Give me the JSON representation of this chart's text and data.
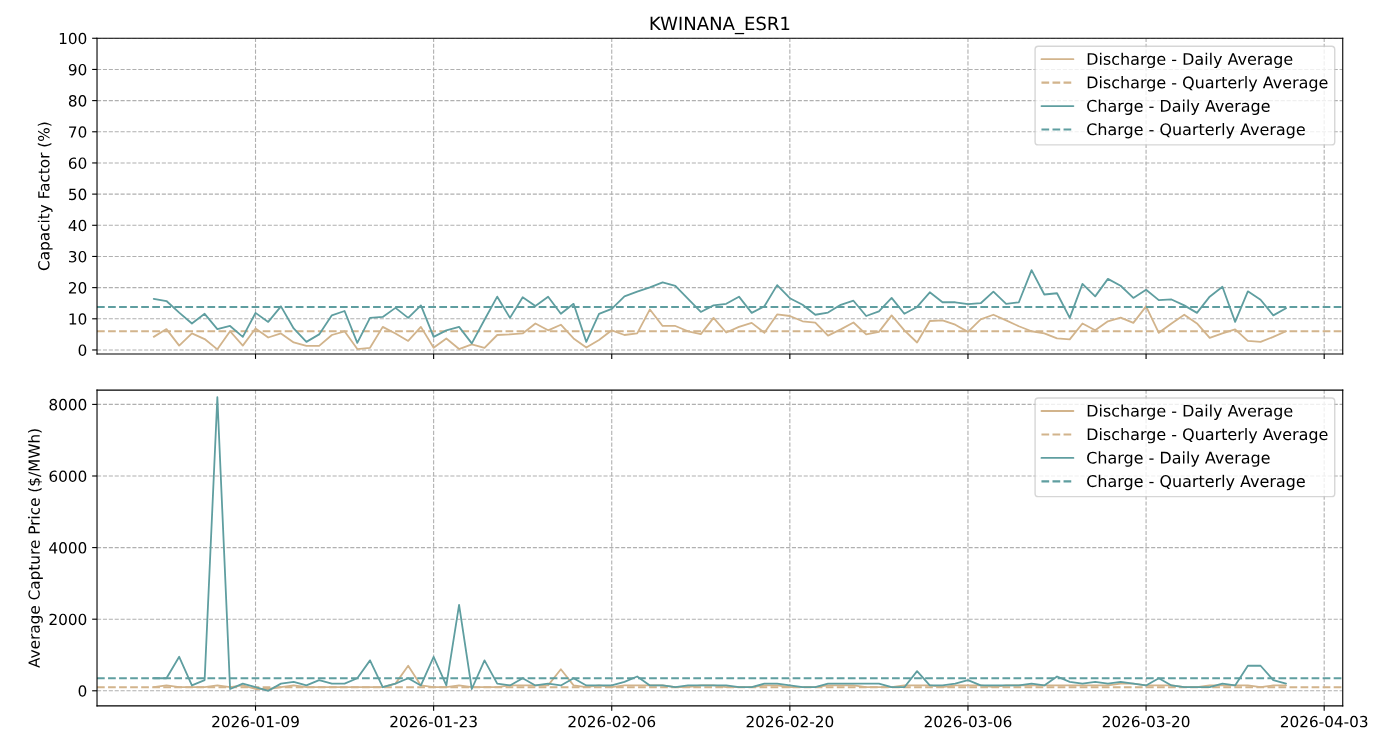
{
  "chart_data": [
    {
      "type": "line",
      "title": "KWINANA_ESR1",
      "ylabel": "Capacity Factor (%)",
      "x": [
        "2026-01-01",
        "2026-01-02",
        "2026-01-03",
        "2026-01-04",
        "2026-01-05",
        "2026-01-06",
        "2026-01-07",
        "2026-01-08",
        "2026-01-09",
        "2026-01-10",
        "2026-01-11",
        "2026-01-12",
        "2026-01-13",
        "2026-01-14",
        "2026-01-15",
        "2026-01-16",
        "2026-01-17",
        "2026-01-18",
        "2026-01-19",
        "2026-01-20",
        "2026-01-21",
        "2026-01-22",
        "2026-01-23",
        "2026-01-24",
        "2026-01-25",
        "2026-01-26",
        "2026-01-27",
        "2026-01-28",
        "2026-01-29",
        "2026-01-30",
        "2026-01-31",
        "2026-02-01",
        "2026-02-02",
        "2026-02-03",
        "2026-02-04",
        "2026-02-05",
        "2026-02-06",
        "2026-02-07",
        "2026-02-08",
        "2026-02-09",
        "2026-02-10",
        "2026-02-11",
        "2026-02-12",
        "2026-02-13",
        "2026-02-14",
        "2026-02-15",
        "2026-02-16",
        "2026-02-17",
        "2026-02-18",
        "2026-02-19",
        "2026-02-20",
        "2026-02-21",
        "2026-02-22",
        "2026-02-23",
        "2026-02-24",
        "2026-02-25",
        "2026-02-26",
        "2026-02-27",
        "2026-02-28",
        "2026-03-01",
        "2026-03-02",
        "2026-03-03",
        "2026-03-04",
        "2026-03-05",
        "2026-03-06",
        "2026-03-07",
        "2026-03-08",
        "2026-03-09",
        "2026-03-10",
        "2026-03-11",
        "2026-03-12",
        "2026-03-13",
        "2026-03-14",
        "2026-03-15",
        "2026-03-16",
        "2026-03-17",
        "2026-03-18",
        "2026-03-19",
        "2026-03-20",
        "2026-03-21",
        "2026-03-22",
        "2026-03-23",
        "2026-03-24",
        "2026-03-25",
        "2026-03-26",
        "2026-03-27",
        "2026-03-28",
        "2026-03-29",
        "2026-03-30",
        "2026-03-31"
      ],
      "xlim": [
        "2025-12-27T13:00",
        "2026-04-04T11:00"
      ],
      "xticks": [
        "2026-01-09",
        "2026-01-23",
        "2026-02-06",
        "2026-02-20",
        "2026-03-06",
        "2026-03-20",
        "2026-04-03"
      ],
      "ylim": [
        -1.3,
        100
      ],
      "yticks": [
        0,
        10,
        20,
        30,
        40,
        50,
        60,
        70,
        80,
        90,
        100
      ],
      "tick_labels": "y",
      "grid": true,
      "legend": "top right",
      "line_style": "solid",
      "series": [
        {
          "name": "Discharge - Daily Average",
          "color": "#d2b48c",
          "values": [
            4.2,
            6.7,
            1.4,
            5.3,
            3.5,
            0.2,
            6,
            1.4,
            6.9,
            4,
            5.3,
            2.4,
            1.3,
            1.3,
            4.8,
            6,
            0.3,
            0.7,
            7.4,
            5.3,
            2.9,
            7.4,
            0.7,
            3.7,
            0.3,
            1.8,
            0.7,
            4.8,
            5,
            5.3,
            8.5,
            6.3,
            8.1,
            3.7,
            0.8,
            3.2,
            6.3,
            4.8,
            5.3,
            13,
            7.7,
            7.7,
            6,
            5.1,
            10.3,
            5.6,
            7.4,
            8.7,
            5.5,
            11.4,
            10.9,
            9.2,
            8.8,
            4.6,
            6.6,
            8.8,
            5,
            5.8,
            11.1,
            6.3,
            2.4,
            9.3,
            9.5,
            8.1,
            5.8,
            9.8,
            11.3,
            9.5,
            7.6,
            6,
            5.3,
            3.7,
            3.4,
            8.5,
            6.3,
            9.2,
            10.4,
            8.7,
            14,
            5.5,
            8.5,
            11.3,
            8.5,
            3.9,
            5.3,
            6.6,
            2.9,
            2.6,
            4.2,
            6
          ]
        },
        {
          "name": "Charge - Daily Average",
          "color": "#5f9ea0",
          "values": [
            16.4,
            15.7,
            12,
            8.5,
            11.6,
            6.7,
            7.7,
            4.2,
            11.9,
            9,
            14,
            6.9,
            2.6,
            5,
            11.1,
            12.5,
            2.3,
            10.3,
            10.6,
            13.5,
            10.3,
            14.3,
            4.2,
            6.3,
            7.4,
            2.1,
            9.7,
            17.1,
            10.3,
            16.9,
            14.1,
            17.1,
            11.6,
            14.8,
            2.6,
            11.6,
            13.2,
            17.2,
            18.7,
            20.1,
            21.7,
            20.6,
            16.4,
            12.2,
            14.3,
            14.8,
            17.1,
            11.9,
            14,
            20.8,
            16.6,
            14.5,
            11.3,
            12,
            14.5,
            15.8,
            10.9,
            12.4,
            16.7,
            11.6,
            13.8,
            18.5,
            15.3,
            15.3,
            14.7,
            15,
            18.7,
            14.8,
            15.3,
            25.6,
            17.8,
            18.2,
            10.3,
            21.2,
            17.2,
            22.8,
            20.6,
            16.7,
            19.3,
            16,
            16.2,
            14.3,
            11.9,
            17.1,
            20.3,
            9,
            18.8,
            16.1,
            11.1,
            13.4
          ]
        }
      ],
      "ref_lines": [
        {
          "axis": "y",
          "value": 6.0,
          "label": "Discharge - Quarterly Average",
          "color": "#d2b48c",
          "line_style": "dashed"
        },
        {
          "axis": "y",
          "value": 13.8,
          "label": "Charge - Quarterly Average",
          "color": "#5f9ea0",
          "line_style": "dashed"
        }
      ]
    },
    {
      "type": "line",
      "ylabel": "Average Capture Price ($/MWh)",
      "x": [
        "2026-01-01",
        "2026-01-02",
        "2026-01-03",
        "2026-01-04",
        "2026-01-05",
        "2026-01-06",
        "2026-01-07",
        "2026-01-08",
        "2026-01-09",
        "2026-01-10",
        "2026-01-11",
        "2026-01-12",
        "2026-01-13",
        "2026-01-14",
        "2026-01-15",
        "2026-01-16",
        "2026-01-17",
        "2026-01-18",
        "2026-01-19",
        "2026-01-20",
        "2026-01-21",
        "2026-01-22",
        "2026-01-23",
        "2026-01-24",
        "2026-01-25",
        "2026-01-26",
        "2026-01-27",
        "2026-01-28",
        "2026-01-29",
        "2026-01-30",
        "2026-01-31",
        "2026-02-01",
        "2026-02-02",
        "2026-02-03",
        "2026-02-04",
        "2026-02-05",
        "2026-02-06",
        "2026-02-07",
        "2026-02-08",
        "2026-02-09",
        "2026-02-10",
        "2026-02-11",
        "2026-02-12",
        "2026-02-13",
        "2026-02-14",
        "2026-02-15",
        "2026-02-16",
        "2026-02-17",
        "2026-02-18",
        "2026-02-19",
        "2026-02-20",
        "2026-02-21",
        "2026-02-22",
        "2026-02-23",
        "2026-02-24",
        "2026-02-25",
        "2026-02-26",
        "2026-02-27",
        "2026-02-28",
        "2026-03-01",
        "2026-03-02",
        "2026-03-03",
        "2026-03-04",
        "2026-03-05",
        "2026-03-06",
        "2026-03-07",
        "2026-03-08",
        "2026-03-09",
        "2026-03-10",
        "2026-03-11",
        "2026-03-12",
        "2026-03-13",
        "2026-03-14",
        "2026-03-15",
        "2026-03-16",
        "2026-03-17",
        "2026-03-18",
        "2026-03-19",
        "2026-03-20",
        "2026-03-21",
        "2026-03-22",
        "2026-03-23",
        "2026-03-24",
        "2026-03-25",
        "2026-03-26",
        "2026-03-27",
        "2026-03-28",
        "2026-03-29",
        "2026-03-30",
        "2026-03-31"
      ],
      "xlim": [
        "2025-12-27T13:00",
        "2026-04-04T11:00"
      ],
      "xticks": [
        "2026-01-09",
        "2026-01-23",
        "2026-02-06",
        "2026-02-20",
        "2026-03-06",
        "2026-03-20",
        "2026-04-03"
      ],
      "ylim": [
        -420,
        8400
      ],
      "yticks": [
        0,
        2000,
        4000,
        6000,
        8000
      ],
      "grid": true,
      "legend": "top right",
      "line_style": "solid",
      "series": [
        {
          "name": "Discharge - Daily Average",
          "color": "#d2b48c",
          "values": [
            100,
            150,
            100,
            100,
            100,
            150,
            100,
            150,
            50,
            50,
            100,
            150,
            100,
            100,
            100,
            100,
            100,
            100,
            100,
            200,
            700,
            150,
            100,
            100,
            150,
            100,
            100,
            100,
            150,
            150,
            150,
            150,
            600,
            150,
            100,
            150,
            100,
            150,
            150,
            150,
            150,
            100,
            100,
            150,
            150,
            100,
            100,
            100,
            150,
            150,
            100,
            100,
            100,
            150,
            150,
            150,
            100,
            100,
            100,
            150,
            150,
            150,
            100,
            150,
            150,
            150,
            100,
            150,
            150,
            150,
            150,
            150,
            150,
            150,
            150,
            150,
            200,
            200,
            150,
            150,
            150,
            100,
            100,
            150,
            150,
            150,
            150,
            100,
            150,
            150
          ]
        },
        {
          "name": "Charge - Daily Average",
          "color": "#5f9ea0",
          "values": [
            350,
            350,
            950,
            150,
            300,
            8200,
            50,
            200,
            100,
            0,
            200,
            250,
            150,
            300,
            200,
            200,
            350,
            850,
            100,
            200,
            350,
            150,
            950,
            150,
            2400,
            50,
            850,
            200,
            150,
            350,
            150,
            200,
            150,
            350,
            150,
            150,
            150,
            250,
            400,
            150,
            150,
            100,
            150,
            150,
            150,
            150,
            100,
            100,
            200,
            200,
            150,
            100,
            100,
            200,
            200,
            200,
            200,
            200,
            100,
            100,
            550,
            150,
            150,
            200,
            300,
            150,
            150,
            150,
            150,
            200,
            150,
            400,
            250,
            200,
            250,
            200,
            250,
            200,
            150,
            350,
            150,
            100,
            100,
            100,
            200,
            150,
            700,
            700,
            300,
            200
          ]
        }
      ],
      "ref_lines": [
        {
          "axis": "y",
          "value": 100,
          "label": "Discharge - Quarterly Average",
          "color": "#d2b48c",
          "line_style": "dashed"
        },
        {
          "axis": "y",
          "value": 350,
          "label": "Charge - Quarterly Average",
          "color": "#5f9ea0",
          "line_style": "dashed"
        }
      ]
    }
  ]
}
